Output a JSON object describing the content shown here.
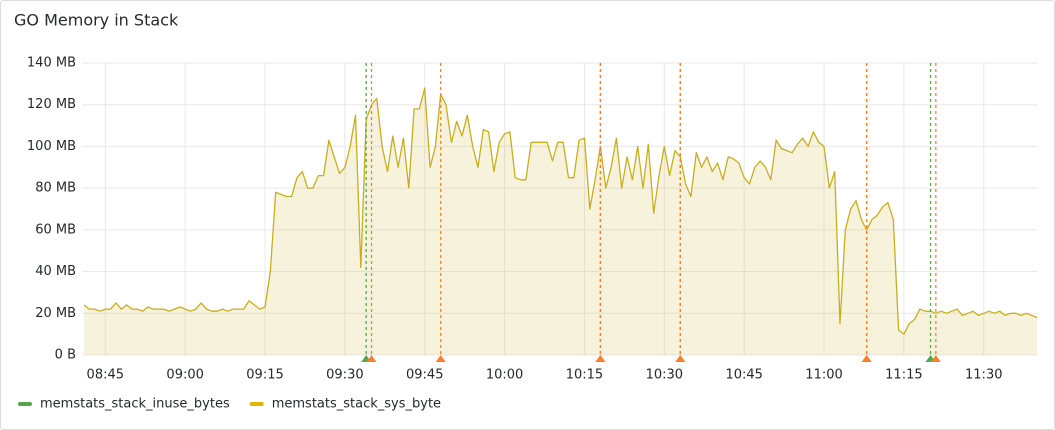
{
  "chart_data": {
    "type": "line",
    "title": "GO Memory in Stack",
    "x": [
      "08:41",
      "08:42",
      "08:43",
      "08:44",
      "08:45",
      "08:46",
      "08:47",
      "08:48",
      "08:49",
      "08:50",
      "08:51",
      "08:52",
      "08:53",
      "08:54",
      "08:55",
      "08:56",
      "08:57",
      "08:58",
      "08:59",
      "09:00",
      "09:01",
      "09:02",
      "09:03",
      "09:04",
      "09:05",
      "09:06",
      "09:07",
      "09:08",
      "09:09",
      "09:10",
      "09:11",
      "09:12",
      "09:13",
      "09:14",
      "09:15",
      "09:16",
      "09:17",
      "09:18",
      "09:19",
      "09:20",
      "09:21",
      "09:22",
      "09:23",
      "09:24",
      "09:25",
      "09:26",
      "09:27",
      "09:28",
      "09:29",
      "09:30",
      "09:31",
      "09:32",
      "09:33",
      "09:34",
      "09:35",
      "09:36",
      "09:37",
      "09:38",
      "09:39",
      "09:40",
      "09:41",
      "09:42",
      "09:43",
      "09:44",
      "09:45",
      "09:46",
      "09:47",
      "09:48",
      "09:49",
      "09:50",
      "09:51",
      "09:52",
      "09:53",
      "09:54",
      "09:55",
      "09:56",
      "09:57",
      "09:58",
      "09:59",
      "10:00",
      "10:01",
      "10:02",
      "10:03",
      "10:04",
      "10:05",
      "10:06",
      "10:07",
      "10:08",
      "10:09",
      "10:10",
      "10:11",
      "10:12",
      "10:13",
      "10:14",
      "10:15",
      "10:16",
      "10:17",
      "10:18",
      "10:19",
      "10:20",
      "10:21",
      "10:22",
      "10:23",
      "10:24",
      "10:25",
      "10:26",
      "10:27",
      "10:28",
      "10:29",
      "10:30",
      "10:31",
      "10:32",
      "10:33",
      "10:34",
      "10:35",
      "10:36",
      "10:37",
      "10:38",
      "10:39",
      "10:40",
      "10:41",
      "10:42",
      "10:43",
      "10:44",
      "10:45",
      "10:46",
      "10:47",
      "10:48",
      "10:49",
      "10:50",
      "10:51",
      "10:52",
      "10:53",
      "10:54",
      "10:55",
      "10:56",
      "10:57",
      "10:58",
      "10:59",
      "11:00",
      "11:01",
      "11:02",
      "11:03",
      "11:04",
      "11:05",
      "11:06",
      "11:07",
      "11:08",
      "11:09",
      "11:10",
      "11:11",
      "11:12",
      "11:13",
      "11:14",
      "11:15",
      "11:16",
      "11:17",
      "11:18",
      "11:19",
      "11:20",
      "11:21",
      "11:22",
      "11:23",
      "11:24",
      "11:25",
      "11:26",
      "11:27",
      "11:28",
      "11:29",
      "11:30",
      "11:31",
      "11:32",
      "11:33",
      "11:34",
      "11:35",
      "11:36",
      "11:37",
      "11:38",
      "11:39",
      "11:40"
    ],
    "series": [
      {
        "name": "memstats_stack_inuse_bytes",
        "color": "#56a64b"
      },
      {
        "name": "memstats_stack_sys_byte",
        "color": "#e0b400",
        "line_color": "#c9ae1c",
        "fill": "rgba(200,180,40,0.17)",
        "values": [
          24,
          22,
          22,
          21,
          22,
          22,
          25,
          22,
          24,
          22,
          22,
          21,
          23,
          22,
          22,
          22,
          21,
          22,
          23,
          22,
          21,
          22,
          25,
          22,
          21,
          21,
          22,
          21,
          22,
          22,
          22,
          26,
          24,
          22,
          23,
          40,
          78,
          77,
          76,
          76,
          85,
          88,
          80,
          80,
          86,
          86,
          103,
          95,
          87,
          90,
          100,
          115,
          42,
          113,
          120,
          123,
          100,
          88,
          105,
          90,
          104,
          80,
          118,
          118,
          128,
          90,
          100,
          125,
          120,
          102,
          112,
          105,
          115,
          100,
          90,
          108,
          107,
          88,
          102,
          106,
          107,
          85,
          84,
          84,
          102,
          102,
          102,
          102,
          93,
          102,
          102,
          85,
          85,
          103,
          104,
          70,
          84,
          100,
          80,
          90,
          104,
          80,
          95,
          84,
          100,
          80,
          101,
          68,
          86,
          100,
          86,
          98,
          95,
          82,
          76,
          97,
          90,
          95,
          88,
          92,
          84,
          95,
          94,
          92,
          85,
          82,
          90,
          93,
          90,
          84,
          103,
          99,
          98,
          97,
          101,
          104,
          100,
          107,
          102,
          100,
          80,
          88,
          15,
          60,
          70,
          74,
          65,
          60,
          65,
          67,
          71,
          73,
          65,
          12,
          10,
          15,
          17,
          22,
          21,
          21,
          20,
          21,
          20,
          21,
          22,
          19,
          20,
          21,
          19,
          20,
          21,
          20,
          21,
          19,
          20,
          20,
          19,
          20,
          19,
          18
        ]
      }
    ],
    "xlim": [
      "08:41",
      "11:40"
    ],
    "xticks": [
      "08:45",
      "09:00",
      "09:15",
      "09:30",
      "09:45",
      "10:00",
      "10:15",
      "10:30",
      "10:45",
      "11:00",
      "11:15",
      "11:30"
    ],
    "ylim": [
      0,
      140
    ],
    "yticks": [
      {
        "value": 0,
        "label": "0 B"
      },
      {
        "value": 20,
        "label": "20 MB"
      },
      {
        "value": 40,
        "label": "40 MB"
      },
      {
        "value": 60,
        "label": "60 MB"
      },
      {
        "value": 80,
        "label": "80 MB"
      },
      {
        "value": 100,
        "label": "100 MB"
      },
      {
        "value": 120,
        "label": "120 MB"
      },
      {
        "value": 140,
        "label": "140 MB"
      }
    ],
    "grid": true,
    "legend": "bottom-left",
    "annotations": [
      {
        "x": "09:34",
        "color": "#56a64b"
      },
      {
        "x": "09:35",
        "color": "#ff7f2a"
      },
      {
        "x": "09:48",
        "color": "#ff7f2a"
      },
      {
        "x": "10:18",
        "color": "#56a64b"
      },
      {
        "x": "10:18",
        "color": "#ff7f2a"
      },
      {
        "x": "10:33",
        "color": "#56a64b"
      },
      {
        "x": "10:33",
        "color": "#ff7f2a"
      },
      {
        "x": "11:08",
        "color": "#56a64b"
      },
      {
        "x": "11:08",
        "color": "#ff7f2a"
      },
      {
        "x": "11:20",
        "color": "#56a64b"
      },
      {
        "x": "11:21",
        "color": "#ff7f2a"
      }
    ]
  }
}
